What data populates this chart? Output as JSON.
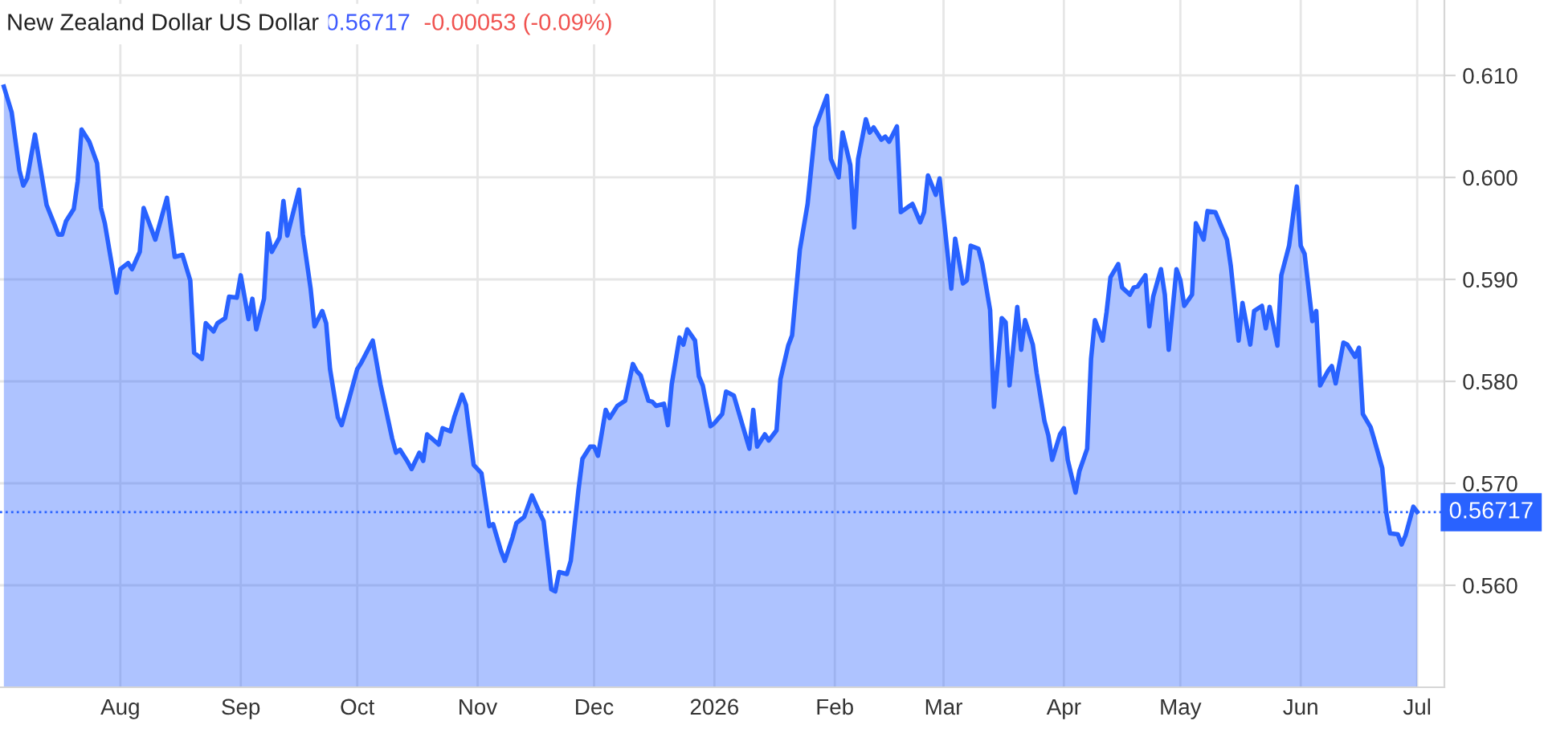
{
  "chart_data": {
    "type": "area",
    "title": "New Zealand Dollar US Dollar",
    "annotations": [
      "0.56717",
      "-0.00053 (-0.09%)"
    ],
    "x": [
      "2025-07-02",
      "2025-07-04",
      "2025-07-06",
      "2025-07-07",
      "2025-07-08",
      "2025-07-10",
      "2025-07-13",
      "2025-07-15",
      "2025-07-16",
      "2025-07-17",
      "2025-07-18",
      "2025-07-20",
      "2025-07-21",
      "2025-07-22",
      "2025-07-24",
      "2025-07-26",
      "2025-07-27",
      "2025-07-28",
      "2025-07-30",
      "2025-07-31",
      "2025-08-01",
      "2025-08-03",
      "2025-08-04",
      "2025-08-06",
      "2025-08-07",
      "2025-08-10",
      "2025-08-13",
      "2025-08-15",
      "2025-08-17",
      "2025-08-19",
      "2025-08-20",
      "2025-08-22",
      "2025-08-23",
      "2025-08-25",
      "2025-08-26",
      "2025-08-28",
      "2025-08-29",
      "2025-08-31",
      "2025-09-01",
      "2025-09-03",
      "2025-09-04",
      "2025-09-05",
      "2025-09-07",
      "2025-09-08",
      "2025-09-09",
      "2025-09-11",
      "2025-09-12",
      "2025-09-13",
      "2025-09-15",
      "2025-09-16",
      "2025-09-17",
      "2025-09-19",
      "2025-09-20",
      "2025-09-22",
      "2025-09-23",
      "2025-09-24",
      "2025-09-26",
      "2025-09-27",
      "2025-09-29",
      "2025-10-01",
      "2025-10-02",
      "2025-10-05",
      "2025-10-07",
      "2025-10-10",
      "2025-10-11",
      "2025-10-12",
      "2025-10-14",
      "2025-10-15",
      "2025-10-17",
      "2025-10-18",
      "2025-10-19",
      "2025-10-22",
      "2025-10-23",
      "2025-10-25",
      "2025-10-26",
      "2025-10-28",
      "2025-10-29",
      "2025-10-31",
      "2025-11-02",
      "2025-11-04",
      "2025-11-05",
      "2025-11-07",
      "2025-11-08",
      "2025-11-10",
      "2025-11-11",
      "2025-11-13",
      "2025-11-15",
      "2025-11-17",
      "2025-11-18",
      "2025-11-20",
      "2025-11-21",
      "2025-11-22",
      "2025-11-24",
      "2025-11-25",
      "2025-11-27",
      "2025-11-28",
      "2025-11-30",
      "2025-12-01",
      "2025-12-02",
      "2025-12-04",
      "2025-12-05",
      "2025-12-07",
      "2025-12-09",
      "2025-12-11",
      "2025-12-12",
      "2025-12-13",
      "2025-12-15",
      "2025-12-16",
      "2025-12-17",
      "2025-12-19",
      "2025-12-20",
      "2025-12-21",
      "2025-12-23",
      "2025-12-24",
      "2025-12-25",
      "2025-12-27",
      "2025-12-28",
      "2025-12-29",
      "2025-12-31",
      "2026-01-01",
      "2026-01-03",
      "2026-01-04",
      "2026-01-06",
      "2026-01-07",
      "2026-01-10",
      "2026-01-11",
      "2026-01-12",
      "2026-01-14",
      "2026-01-15",
      "2026-01-17",
      "2026-01-18",
      "2026-01-20",
      "2026-01-21",
      "2026-01-23",
      "2026-01-25",
      "2026-01-27",
      "2026-01-30",
      "2026-01-31",
      "2026-02-02",
      "2026-02-03",
      "2026-02-05",
      "2026-02-06",
      "2026-02-07",
      "2026-02-09",
      "2026-02-10",
      "2026-02-11",
      "2026-02-13",
      "2026-02-14",
      "2026-02-15",
      "2026-02-17",
      "2026-02-18",
      "2026-02-21",
      "2026-02-23",
      "2026-02-24",
      "2026-02-25",
      "2026-02-27",
      "2026-02-28",
      "2026-03-03",
      "2026-03-04",
      "2026-03-06",
      "2026-03-07",
      "2026-03-08",
      "2026-03-10",
      "2026-03-11",
      "2026-03-13",
      "2026-03-14",
      "2026-03-16",
      "2026-03-17",
      "2026-03-18",
      "2026-03-20",
      "2026-03-21",
      "2026-03-22",
      "2026-03-24",
      "2026-03-25",
      "2026-03-27",
      "2026-03-28",
      "2026-03-29",
      "2026-03-31",
      "2026-04-01",
      "2026-04-02",
      "2026-04-04",
      "2026-04-05",
      "2026-04-07",
      "2026-04-08",
      "2026-04-09",
      "2026-04-11",
      "2026-04-12",
      "2026-04-13",
      "2026-04-15",
      "2026-04-16",
      "2026-04-18",
      "2026-04-19",
      "2026-04-20",
      "2026-04-22",
      "2026-04-23",
      "2026-04-24",
      "2026-04-26",
      "2026-04-27",
      "2026-04-28",
      "2026-04-30",
      "2026-05-01",
      "2026-05-02",
      "2026-05-04",
      "2026-05-05",
      "2026-05-07",
      "2026-05-08",
      "2026-05-10",
      "2026-05-11",
      "2026-05-13",
      "2026-05-14",
      "2026-05-16",
      "2026-05-17",
      "2026-05-19",
      "2026-05-20",
      "2026-05-22",
      "2026-05-23",
      "2026-05-24",
      "2026-05-26",
      "2026-05-27",
      "2026-05-29",
      "2026-05-31",
      "2026-06-01",
      "2026-06-02",
      "2026-06-04",
      "2026-06-05",
      "2026-06-06",
      "2026-06-08",
      "2026-06-09",
      "2026-06-10",
      "2026-06-12",
      "2026-06-13",
      "2026-06-15",
      "2026-06-16",
      "2026-06-17",
      "2026-06-19",
      "2026-06-20",
      "2026-06-22",
      "2026-06-23",
      "2026-06-24",
      "2026-06-26",
      "2026-06-27",
      "2026-06-28",
      "2026-06-30",
      "2026-07-01"
    ],
    "series": [
      {
        "color": "#2962ff",
        "values": [
          0.6089,
          0.6064,
          0.6007,
          0.5992,
          0.5999,
          0.6042,
          0.5973,
          0.5954,
          0.5944,
          0.5944,
          0.5957,
          0.5969,
          0.5996,
          0.6047,
          0.6035,
          0.6014,
          0.597,
          0.5955,
          0.591,
          0.5887,
          0.591,
          0.5916,
          0.591,
          0.5927,
          0.597,
          0.5939,
          0.598,
          0.5922,
          0.5924,
          0.5899,
          0.5828,
          0.5822,
          0.5857,
          0.5849,
          0.5857,
          0.5862,
          0.5883,
          0.5882,
          0.5904,
          0.5861,
          0.5881,
          0.5851,
          0.5881,
          0.5945,
          0.5927,
          0.5941,
          0.5977,
          0.5943,
          0.5973,
          0.5988,
          0.5944,
          0.5891,
          0.5854,
          0.5869,
          0.5857,
          0.5812,
          0.5765,
          0.5757,
          0.5784,
          0.5812,
          0.5818,
          0.584,
          0.5797,
          0.5744,
          0.573,
          0.5733,
          0.5721,
          0.5714,
          0.573,
          0.5722,
          0.5748,
          0.5738,
          0.5754,
          0.5751,
          0.5765,
          0.5787,
          0.5777,
          0.5718,
          0.571,
          0.5658,
          0.566,
          0.5634,
          0.5624,
          0.5647,
          0.5661,
          0.5667,
          0.5688,
          0.5671,
          0.5663,
          0.5596,
          0.5594,
          0.5613,
          0.5611,
          0.5624,
          0.5694,
          0.5724,
          0.5736,
          0.5736,
          0.5727,
          0.5772,
          0.5764,
          0.5776,
          0.5781,
          0.5817,
          0.581,
          0.5806,
          0.5781,
          0.578,
          0.5776,
          0.5778,
          0.5757,
          0.5797,
          0.5843,
          0.5836,
          0.5851,
          0.584,
          0.5805,
          0.5796,
          0.5756,
          0.5759,
          0.5768,
          0.579,
          0.5786,
          0.5773,
          0.5734,
          0.5772,
          0.5736,
          0.5748,
          0.5742,
          0.5752,
          0.5802,
          0.5835,
          0.5845,
          0.5929,
          0.5974,
          0.6049,
          0.608,
          0.6018,
          0.6,
          0.6044,
          0.6012,
          0.5951,
          0.6018,
          0.6057,
          0.6044,
          0.6049,
          0.6037,
          0.604,
          0.6035,
          0.605,
          0.5966,
          0.5974,
          0.5956,
          0.5966,
          0.6002,
          0.5983,
          0.5999,
          0.5891,
          0.594,
          0.5896,
          0.5899,
          0.5933,
          0.593,
          0.5915,
          0.587,
          0.5775,
          0.5862,
          0.5858,
          0.5796,
          0.5873,
          0.5831,
          0.586,
          0.5836,
          0.5808,
          0.5761,
          0.5747,
          0.5723,
          0.5748,
          0.5754,
          0.5723,
          0.5691,
          0.5712,
          0.5734,
          0.5822,
          0.586,
          0.584,
          0.5868,
          0.5902,
          0.5915,
          0.5892,
          0.5885,
          0.5892,
          0.5893,
          0.5904,
          0.5854,
          0.5883,
          0.591,
          0.5885,
          0.5831,
          0.591,
          0.5899,
          0.5874,
          0.5885,
          0.5955,
          0.5939,
          0.5967,
          0.5966,
          0.5957,
          0.5939,
          0.5913,
          0.584,
          0.5877,
          0.5836,
          0.5869,
          0.5874,
          0.5852,
          0.5873,
          0.5835,
          0.5904,
          0.5933,
          0.5991,
          0.5933,
          0.5925,
          0.5859,
          0.5869,
          0.5796,
          0.581,
          0.5815,
          0.5798,
          0.5838,
          0.5836,
          0.5824,
          0.5833,
          0.5768,
          0.5755,
          0.5742,
          0.5715,
          0.5672,
          0.5651,
          0.565,
          0.564,
          0.5649,
          0.5677,
          0.5672
        ]
      }
    ],
    "xlim": [
      "2025-07-01",
      "2026-07-08"
    ],
    "xticks": [
      {
        "value": "2025-08-01",
        "label": "Aug"
      },
      {
        "value": "2025-09-01",
        "label": "Sep"
      },
      {
        "value": "2025-10-01",
        "label": "Oct"
      },
      {
        "value": "2025-11-01",
        "label": "Nov"
      },
      {
        "value": "2025-12-01",
        "label": "Dec"
      },
      {
        "value": "2026-01-01",
        "label": "2026"
      },
      {
        "value": "2026-02-01",
        "label": "Feb"
      },
      {
        "value": "2026-03-01",
        "label": "Mar"
      },
      {
        "value": "2026-04-01",
        "label": "Apr"
      },
      {
        "value": "2026-05-01",
        "label": "May"
      },
      {
        "value": "2026-06-01",
        "label": "Jun"
      },
      {
        "value": "2026-07-01",
        "label": "Jul"
      }
    ],
    "ylim": [
      0.55,
      0.6174
    ],
    "yticks": [
      {
        "value": 0.56,
        "label": "0.560"
      },
      {
        "value": 0.57,
        "label": "0.570"
      },
      {
        "value": 0.58,
        "label": "0.580"
      },
      {
        "value": 0.59,
        "label": "0.590"
      },
      {
        "value": 0.6,
        "label": "0.600"
      },
      {
        "value": 0.61,
        "label": "0.610"
      }
    ],
    "ref_lines": [
      {
        "axis": "y",
        "value": 0.56717,
        "label": "0.56717",
        "color": "#2962ff",
        "line_style": "dotted"
      }
    ],
    "grid": true
  }
}
